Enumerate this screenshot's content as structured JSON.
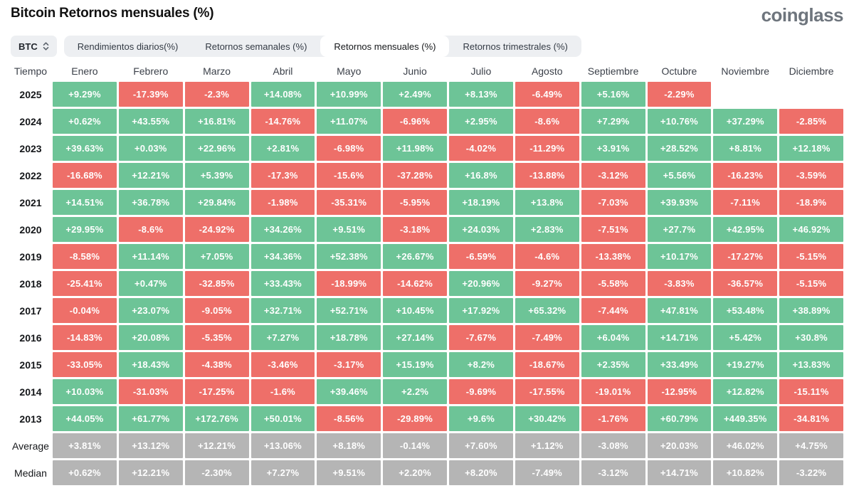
{
  "header": {
    "title": "Bitcoin Retornos mensuales (%)",
    "logo": "coinglass"
  },
  "controls": {
    "coin": "BTC",
    "tabs": [
      {
        "label": "Rendimientos diarios(%)",
        "active": false
      },
      {
        "label": "Retornos semanales (%)",
        "active": false
      },
      {
        "label": "Retornos mensuales (%)",
        "active": true
      },
      {
        "label": "Retornos trimestrales (%)",
        "active": false
      }
    ]
  },
  "chart_data": {
    "type": "heatmap",
    "title": "Bitcoin Retornos mensuales (%)",
    "legend_position": "none",
    "colors": {
      "positive": "#6dc497",
      "negative": "#ee6f69",
      "neutral": "#b5b5b5"
    },
    "columns": [
      "Tiempo",
      "Enero",
      "Febrero",
      "Marzo",
      "Abril",
      "Mayo",
      "Junio",
      "Julio",
      "Agosto",
      "Septiembre",
      "Octubre",
      "Noviembre",
      "Diciembre"
    ],
    "rows": [
      {
        "label": "2025",
        "stat": false,
        "values": [
          "+9.29%",
          "-17.39%",
          "-2.3%",
          "+14.08%",
          "+10.99%",
          "+2.49%",
          "+8.13%",
          "-6.49%",
          "+5.16%",
          "-2.29%",
          "",
          ""
        ]
      },
      {
        "label": "2024",
        "stat": false,
        "values": [
          "+0.62%",
          "+43.55%",
          "+16.81%",
          "-14.76%",
          "+11.07%",
          "-6.96%",
          "+2.95%",
          "-8.6%",
          "+7.29%",
          "+10.76%",
          "+37.29%",
          "-2.85%"
        ]
      },
      {
        "label": "2023",
        "stat": false,
        "values": [
          "+39.63%",
          "+0.03%",
          "+22.96%",
          "+2.81%",
          "-6.98%",
          "+11.98%",
          "-4.02%",
          "-11.29%",
          "+3.91%",
          "+28.52%",
          "+8.81%",
          "+12.18%"
        ]
      },
      {
        "label": "2022",
        "stat": false,
        "values": [
          "-16.68%",
          "+12.21%",
          "+5.39%",
          "-17.3%",
          "-15.6%",
          "-37.28%",
          "+16.8%",
          "-13.88%",
          "-3.12%",
          "+5.56%",
          "-16.23%",
          "-3.59%"
        ]
      },
      {
        "label": "2021",
        "stat": false,
        "values": [
          "+14.51%",
          "+36.78%",
          "+29.84%",
          "-1.98%",
          "-35.31%",
          "-5.95%",
          "+18.19%",
          "+13.8%",
          "-7.03%",
          "+39.93%",
          "-7.11%",
          "-18.9%"
        ]
      },
      {
        "label": "2020",
        "stat": false,
        "values": [
          "+29.95%",
          "-8.6%",
          "-24.92%",
          "+34.26%",
          "+9.51%",
          "-3.18%",
          "+24.03%",
          "+2.83%",
          "-7.51%",
          "+27.7%",
          "+42.95%",
          "+46.92%"
        ]
      },
      {
        "label": "2019",
        "stat": false,
        "values": [
          "-8.58%",
          "+11.14%",
          "+7.05%",
          "+34.36%",
          "+52.38%",
          "+26.67%",
          "-6.59%",
          "-4.6%",
          "-13.38%",
          "+10.17%",
          "-17.27%",
          "-5.15%"
        ]
      },
      {
        "label": "2018",
        "stat": false,
        "values": [
          "-25.41%",
          "+0.47%",
          "-32.85%",
          "+33.43%",
          "-18.99%",
          "-14.62%",
          "+20.96%",
          "-9.27%",
          "-5.58%",
          "-3.83%",
          "-36.57%",
          "-5.15%"
        ]
      },
      {
        "label": "2017",
        "stat": false,
        "values": [
          "-0.04%",
          "+23.07%",
          "-9.05%",
          "+32.71%",
          "+52.71%",
          "+10.45%",
          "+17.92%",
          "+65.32%",
          "-7.44%",
          "+47.81%",
          "+53.48%",
          "+38.89%"
        ]
      },
      {
        "label": "2016",
        "stat": false,
        "values": [
          "-14.83%",
          "+20.08%",
          "-5.35%",
          "+7.27%",
          "+18.78%",
          "+27.14%",
          "-7.67%",
          "-7.49%",
          "+6.04%",
          "+14.71%",
          "+5.42%",
          "+30.8%"
        ]
      },
      {
        "label": "2015",
        "stat": false,
        "values": [
          "-33.05%",
          "+18.43%",
          "-4.38%",
          "-3.46%",
          "-3.17%",
          "+15.19%",
          "+8.2%",
          "-18.67%",
          "+2.35%",
          "+33.49%",
          "+19.27%",
          "+13.83%"
        ]
      },
      {
        "label": "2014",
        "stat": false,
        "values": [
          "+10.03%",
          "-31.03%",
          "-17.25%",
          "-1.6%",
          "+39.46%",
          "+2.2%",
          "-9.69%",
          "-17.55%",
          "-19.01%",
          "-12.95%",
          "+12.82%",
          "-15.11%"
        ]
      },
      {
        "label": "2013",
        "stat": false,
        "values": [
          "+44.05%",
          "+61.77%",
          "+172.76%",
          "+50.01%",
          "-8.56%",
          "-29.89%",
          "+9.6%",
          "+30.42%",
          "-1.76%",
          "+60.79%",
          "+449.35%",
          "-34.81%"
        ]
      },
      {
        "label": "Average",
        "stat": true,
        "values": [
          "+3.81%",
          "+13.12%",
          "+12.21%",
          "+13.06%",
          "+8.18%",
          "-0.14%",
          "+7.60%",
          "+1.12%",
          "-3.08%",
          "+20.03%",
          "+46.02%",
          "+4.75%"
        ]
      },
      {
        "label": "Median",
        "stat": true,
        "values": [
          "+0.62%",
          "+12.21%",
          "-2.30%",
          "+7.27%",
          "+9.51%",
          "+2.20%",
          "+8.20%",
          "-7.49%",
          "-3.12%",
          "+14.71%",
          "+10.82%",
          "-3.22%"
        ]
      }
    ]
  }
}
